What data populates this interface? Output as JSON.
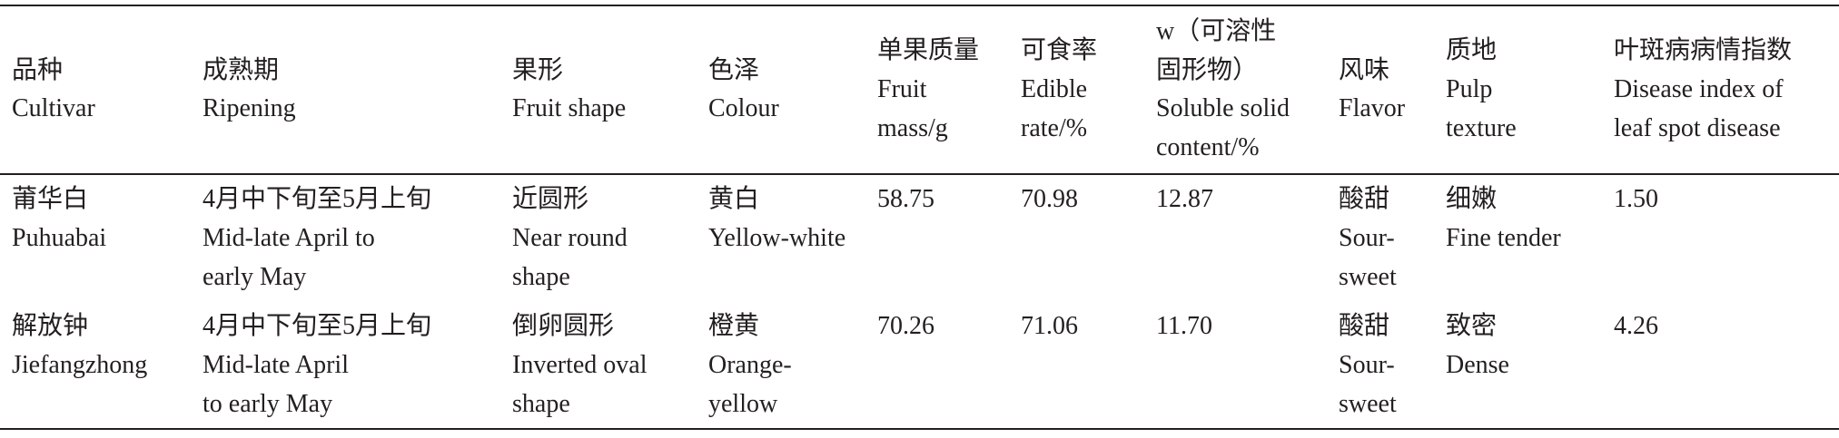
{
  "table": {
    "header": [
      [
        "品种",
        "Cultivar"
      ],
      [
        "成熟期",
        "Ripening"
      ],
      [
        "果形",
        "Fruit shape"
      ],
      [
        "色泽",
        "Colour"
      ],
      [
        "单果质量",
        "Fruit",
        "mass/g"
      ],
      [
        "可食率",
        "Edible",
        "rate/%"
      ],
      [
        "w（可溶性",
        "固形物）",
        "Soluble solid",
        "content/%"
      ],
      [
        "风味",
        "Flavor"
      ],
      [
        "质地",
        "Pulp",
        "texture"
      ],
      [
        "叶斑病病情指数",
        "Disease index of",
        "leaf spot disease"
      ]
    ],
    "rows": [
      [
        [
          "莆华白",
          "Puhuabai"
        ],
        [
          "4月中下旬至5月上旬",
          "Mid-late April to",
          "early May"
        ],
        [
          "近圆形",
          "Near round",
          "shape"
        ],
        [
          "黄白",
          "Yellow-white"
        ],
        [
          "58.75"
        ],
        [
          "70.98"
        ],
        [
          "12.87"
        ],
        [
          "酸甜",
          "Sour-",
          "sweet"
        ],
        [
          "细嫩",
          "Fine tender"
        ],
        [
          "1.50"
        ]
      ],
      [
        [
          "解放钟",
          "Jiefangzhong"
        ],
        [
          "4月中下旬至5月上旬",
          "Mid-late April",
          "to early May"
        ],
        [
          "倒卵圆形",
          "Inverted oval",
          "shape"
        ],
        [
          "橙黄",
          "Orange-",
          "yellow"
        ],
        [
          "70.26"
        ],
        [
          "71.06"
        ],
        [
          "11.70"
        ],
        [
          "酸甜",
          "Sour-",
          "sweet"
        ],
        [
          "致密",
          "Dense"
        ],
        [
          "4.26"
        ]
      ]
    ]
  }
}
